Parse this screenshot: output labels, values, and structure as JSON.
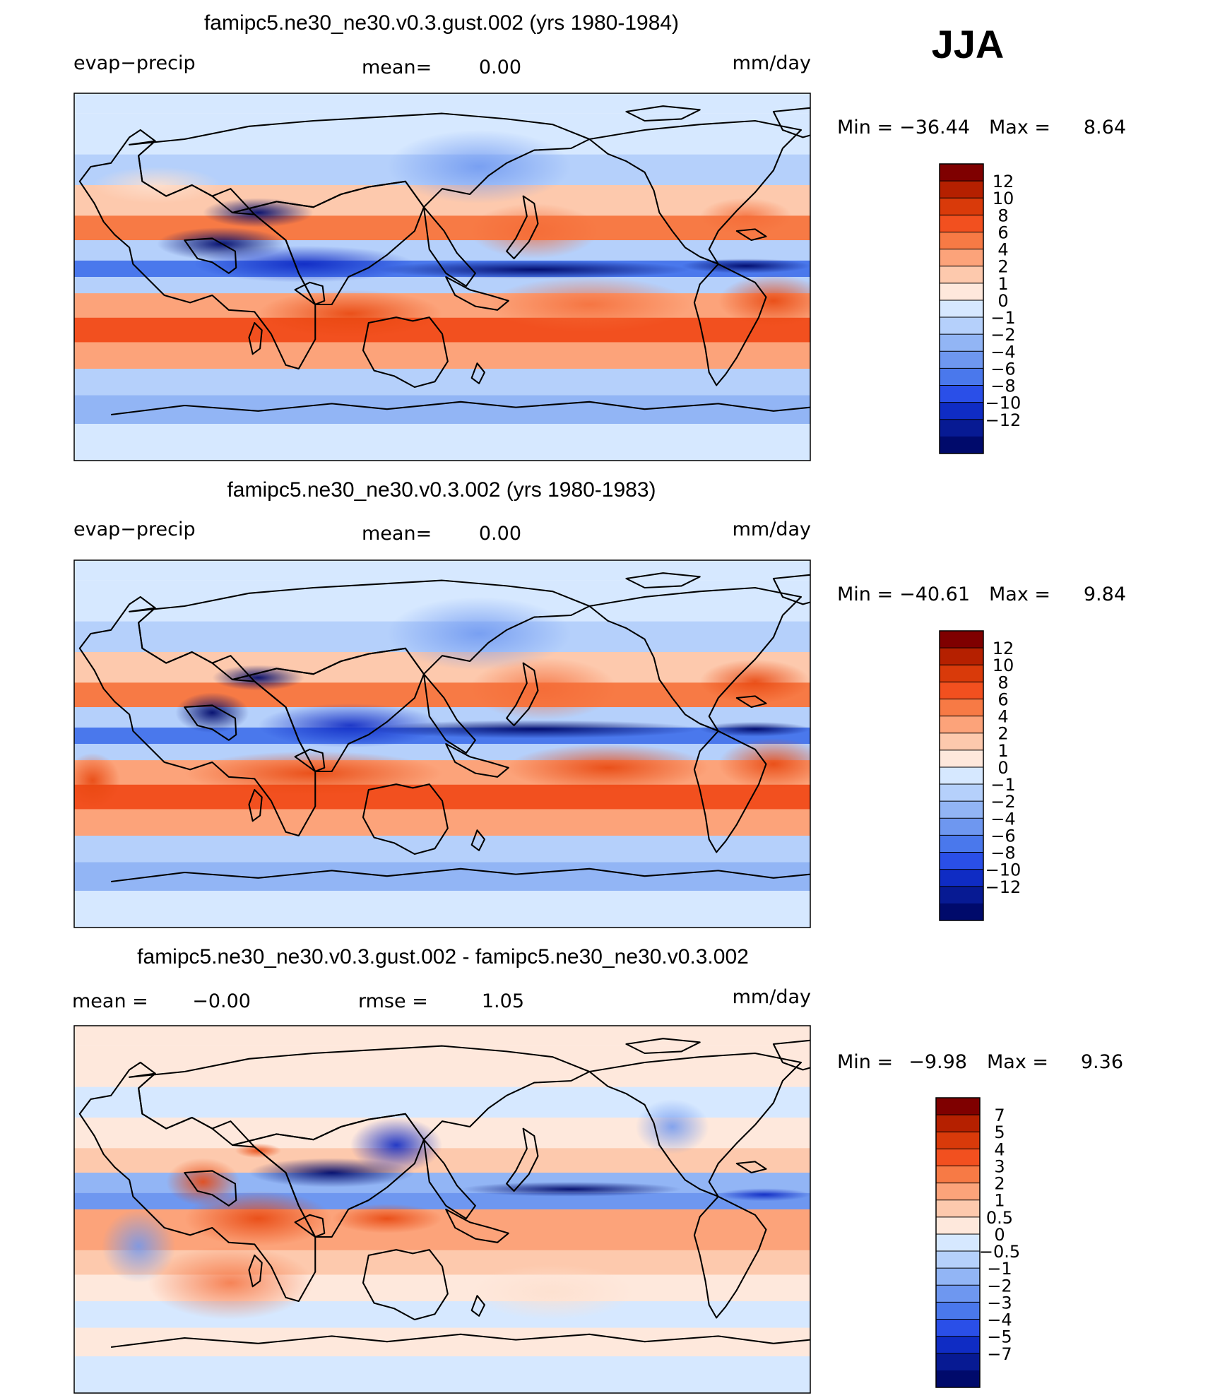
{
  "figure": {
    "season": "JJA"
  },
  "chart_data": [
    {
      "type": "heatmap",
      "title": "famipc5.ne30_ne30.v0.3.gust.002 (yrs 1980-1984)",
      "variable": "evap−precip",
      "units": "mm/day",
      "stat1_label": "mean=",
      "stat1_value": "0.00",
      "min_label": "Min  =",
      "min_value": "−36.44",
      "max_label": "Max  =",
      "max_value": "8.64",
      "levels": [
        "12",
        "10",
        "8",
        "6",
        "4",
        "2",
        "1",
        "0",
        "−1",
        "−2",
        "−4",
        "−6",
        "−8",
        "−10",
        "−12"
      ],
      "colors": [
        "#7f0000",
        "#b52000",
        "#d93a0a",
        "#f2501f",
        "#f77a45",
        "#fca37a",
        "#fdc9ad",
        "#fee8dc",
        "#d6e8ff",
        "#b5d0fb",
        "#92b5f5",
        "#6e97f0",
        "#4a78ec",
        "#2a4fe8",
        "#0f2cc4",
        "#071a93",
        "#000a6b"
      ],
      "bands": [
        {
          "lat": 80,
          "v": -1
        },
        {
          "lat": 60,
          "v": -2
        },
        {
          "lat": 45,
          "v": 1
        },
        {
          "lat": 30,
          "v": 4
        },
        {
          "lat": 18,
          "v": -2
        },
        {
          "lat": 8,
          "v": -8
        },
        {
          "lat": 0,
          "v": -2
        },
        {
          "lat": -8,
          "v": 2
        },
        {
          "lat": -20,
          "v": 6
        },
        {
          "lat": -32,
          "v": 3
        },
        {
          "lat": -45,
          "v": -2
        },
        {
          "lat": -58,
          "v": -3
        },
        {
          "lat": -72,
          "v": -1
        },
        {
          "lat": -90,
          "v": -1
        }
      ]
    },
    {
      "type": "heatmap",
      "title": "famipc5.ne30_ne30.v0.3.002 (yrs 1980-1983)",
      "variable": "evap−precip",
      "units": "mm/day",
      "stat1_label": "mean=",
      "stat1_value": "0.00",
      "min_label": "Min  =",
      "min_value": "−40.61",
      "max_label": "Max  =",
      "max_value": "9.84",
      "levels": [
        "12",
        "10",
        "8",
        "6",
        "4",
        "2",
        "1",
        "0",
        "−1",
        "−2",
        "−4",
        "−6",
        "−8",
        "−10",
        "−12"
      ],
      "colors": [
        "#7f0000",
        "#b52000",
        "#d93a0a",
        "#f2501f",
        "#f77a45",
        "#fca37a",
        "#fdc9ad",
        "#fee8dc",
        "#d6e8ff",
        "#b5d0fb",
        "#92b5f5",
        "#6e97f0",
        "#4a78ec",
        "#2a4fe8",
        "#0f2cc4",
        "#071a93",
        "#000a6b"
      ],
      "bands": [
        {
          "lat": 80,
          "v": -1
        },
        {
          "lat": 60,
          "v": -2
        },
        {
          "lat": 45,
          "v": 1
        },
        {
          "lat": 30,
          "v": 4
        },
        {
          "lat": 18,
          "v": -2
        },
        {
          "lat": 8,
          "v": -8
        },
        {
          "lat": 0,
          "v": -2
        },
        {
          "lat": -8,
          "v": 2
        },
        {
          "lat": -20,
          "v": 6
        },
        {
          "lat": -32,
          "v": 3
        },
        {
          "lat": -45,
          "v": -2
        },
        {
          "lat": -58,
          "v": -3
        },
        {
          "lat": -72,
          "v": -1
        },
        {
          "lat": -90,
          "v": -1
        }
      ]
    },
    {
      "type": "heatmap",
      "title": "famipc5.ne30_ne30.v0.3.gust.002 - famipc5.ne30_ne30.v0.3.002",
      "variable": "mean  =",
      "units": "mm/day",
      "stat0_value": "−0.00",
      "stat1_label": "rmse  =",
      "stat1_value": "1.05",
      "min_label": "Min  =",
      "min_value": "−9.98",
      "max_label": "Max  =",
      "max_value": "9.36",
      "levels": [
        "7",
        "5",
        "4",
        "3",
        "2",
        "1",
        "0.5",
        "0",
        "−0.5",
        "−1",
        "−2",
        "−3",
        "−4",
        "−5",
        "−7"
      ],
      "colors": [
        "#7f0000",
        "#b52000",
        "#d93a0a",
        "#f2501f",
        "#f77a45",
        "#fca37a",
        "#fdc9ad",
        "#fee8dc",
        "#d6e8ff",
        "#b5d0fb",
        "#92b5f5",
        "#6e97f0",
        "#4a78ec",
        "#2a4fe8",
        "#0f2cc4",
        "#071a93",
        "#000a6b"
      ],
      "bands": [
        {
          "lat": 80,
          "v": 0.2
        },
        {
          "lat": 60,
          "v": -0.3
        },
        {
          "lat": 45,
          "v": 0.3
        },
        {
          "lat": 30,
          "v": 0.5
        },
        {
          "lat": 18,
          "v": -1.5
        },
        {
          "lat": 8,
          "v": -2.5
        },
        {
          "lat": 0,
          "v": 1.5
        },
        {
          "lat": -8,
          "v": 1.0
        },
        {
          "lat": -20,
          "v": 0.6
        },
        {
          "lat": -32,
          "v": 0.3
        },
        {
          "lat": -45,
          "v": -0.4
        },
        {
          "lat": -58,
          "v": 0.2
        },
        {
          "lat": -72,
          "v": -0.2
        },
        {
          "lat": -90,
          "v": 0.0
        }
      ]
    }
  ]
}
